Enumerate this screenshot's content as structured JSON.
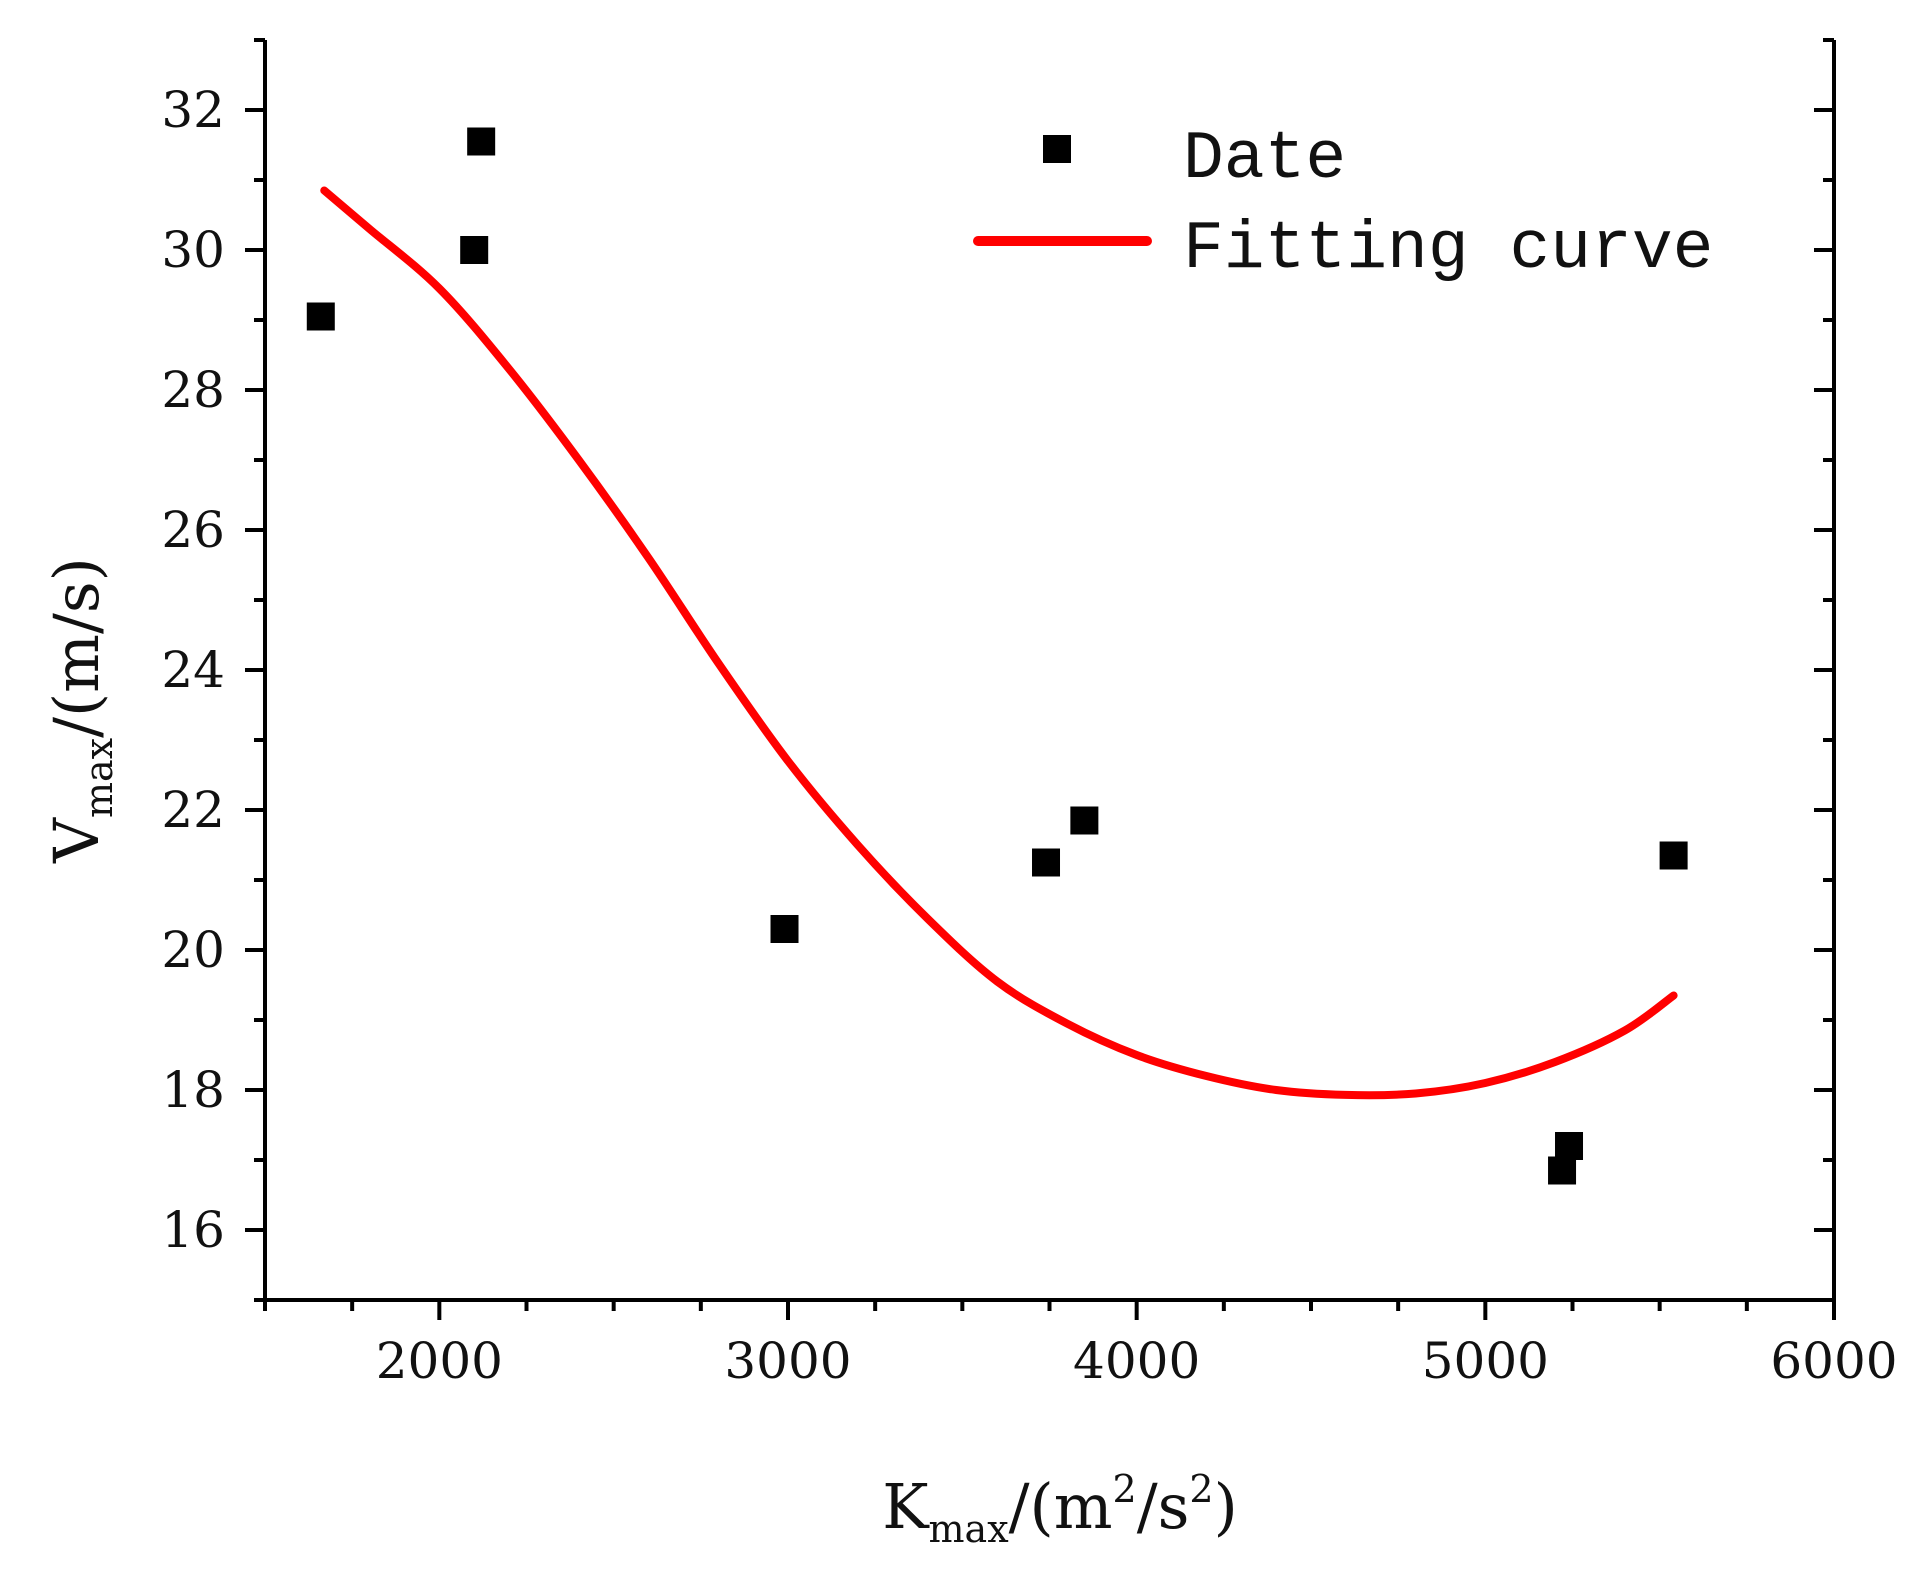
{
  "chart_data": {
    "type": "scatter",
    "title": "",
    "xlabel": {
      "main": "K",
      "sub": "max",
      "rest": "/(m",
      "sup1": "2",
      "mid": "/s",
      "sup2": "2",
      "end": ")"
    },
    "ylabel": {
      "main": "V",
      "sub": "max",
      "rest": "/(m/s)"
    },
    "xlim": [
      1500,
      6000
    ],
    "ylim": [
      15,
      33
    ],
    "xticks": [
      2000,
      3000,
      4000,
      5000,
      6000
    ],
    "yticks": [
      16,
      18,
      20,
      22,
      24,
      26,
      28,
      30,
      32
    ],
    "xtick_labels": [
      "2000",
      "3000",
      "4000",
      "5000",
      "6000"
    ],
    "ytick_labels": [
      "16",
      "18",
      "20",
      "22",
      "24",
      "26",
      "28",
      "30",
      "32"
    ],
    "legend": {
      "placement": "top-right",
      "entries": [
        "Date",
        "Fitting curve"
      ]
    },
    "colors": {
      "points": "#000000",
      "curve": "#ff0000",
      "axis": "#000000"
    },
    "series": [
      {
        "name": "Date",
        "kind": "scatter",
        "x": [
          1660,
          2100,
          2120,
          2990,
          3740,
          3850,
          5220,
          5240,
          5540
        ],
        "y": [
          29.05,
          30.0,
          31.55,
          20.3,
          21.25,
          21.85,
          16.85,
          17.2,
          21.35
        ]
      },
      {
        "name": "Fitting curve",
        "kind": "line",
        "x": [
          1670,
          1800,
          2000,
          2200,
          2400,
          2600,
          2800,
          3000,
          3200,
          3400,
          3600,
          3800,
          4000,
          4200,
          4400,
          4600,
          4800,
          5000,
          5200,
          5400,
          5540
        ],
        "y": [
          30.85,
          30.3,
          29.45,
          28.3,
          27.0,
          25.6,
          24.1,
          22.7,
          21.5,
          20.45,
          19.55,
          18.95,
          18.5,
          18.2,
          18.0,
          17.93,
          17.95,
          18.1,
          18.4,
          18.85,
          19.35
        ]
      }
    ]
  }
}
